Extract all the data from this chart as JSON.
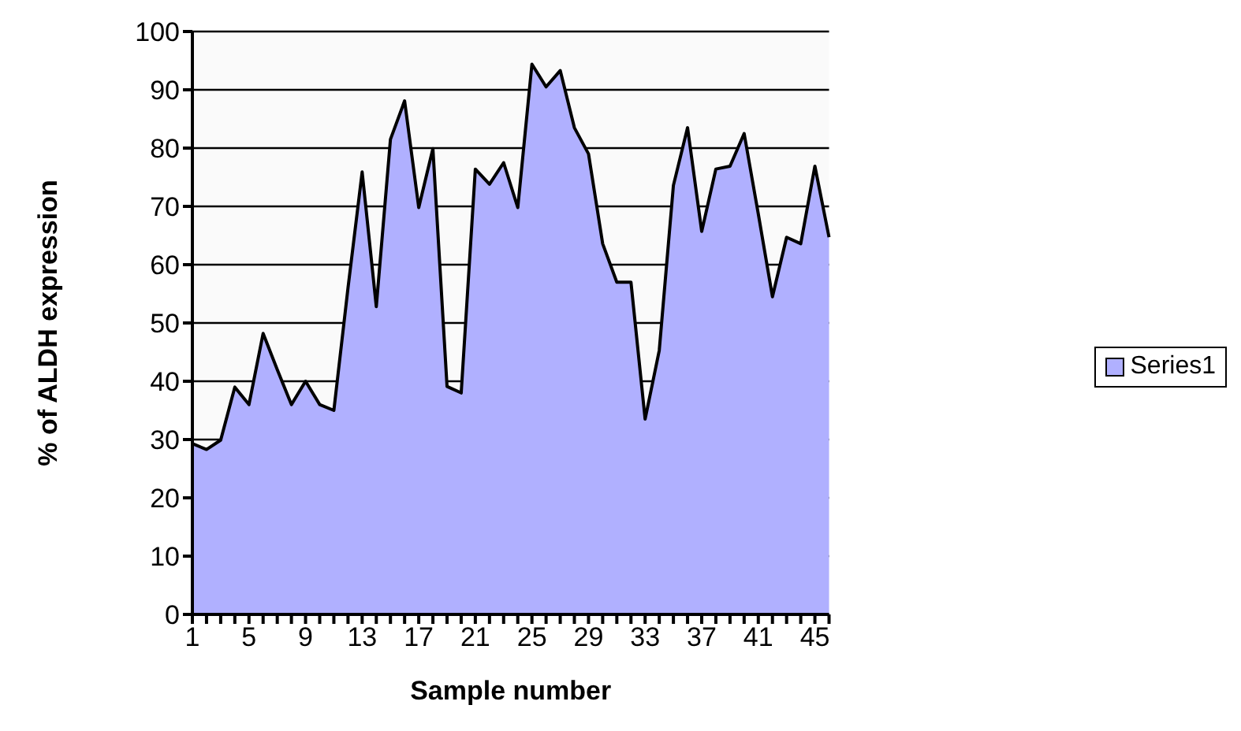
{
  "chart_data": {
    "type": "area",
    "xlabel": "Sample number",
    "ylabel": "% of ALDH expression",
    "categories": [
      "1",
      null,
      null,
      null,
      "5",
      null,
      null,
      null,
      "9",
      null,
      null,
      null,
      "13",
      null,
      null,
      null,
      "17",
      null,
      null,
      null,
      "21",
      null,
      null,
      null,
      "25",
      null,
      null,
      null,
      "29",
      null,
      null,
      null,
      "33",
      null,
      null,
      null,
      "37",
      null,
      null,
      null,
      "41",
      null,
      null,
      null,
      "45",
      null
    ],
    "series": [
      {
        "name": "Series1",
        "color": "#b0b0ff",
        "values": [
          29.3,
          28.3,
          29.9,
          39,
          36,
          48.2,
          42,
          36,
          40,
          36,
          35,
          56,
          75.9,
          52.8,
          81.5,
          88.1,
          69.8,
          79.9,
          39.1,
          38,
          76.4,
          73.8,
          77.5,
          69.8,
          94.4,
          90.5,
          93.3,
          83.5,
          79,
          63.6,
          57,
          57,
          33.5,
          45.3,
          73.6,
          83.5,
          65.7,
          76.4,
          76.9,
          82.5,
          68.7,
          54.5,
          64.7,
          63.6,
          76.9,
          64.7
        ]
      }
    ],
    "ylim": [
      0,
      100
    ],
    "yticks": [
      0,
      10,
      20,
      30,
      40,
      50,
      60,
      70,
      80,
      90,
      100
    ],
    "grid": "y",
    "legend": "right"
  }
}
